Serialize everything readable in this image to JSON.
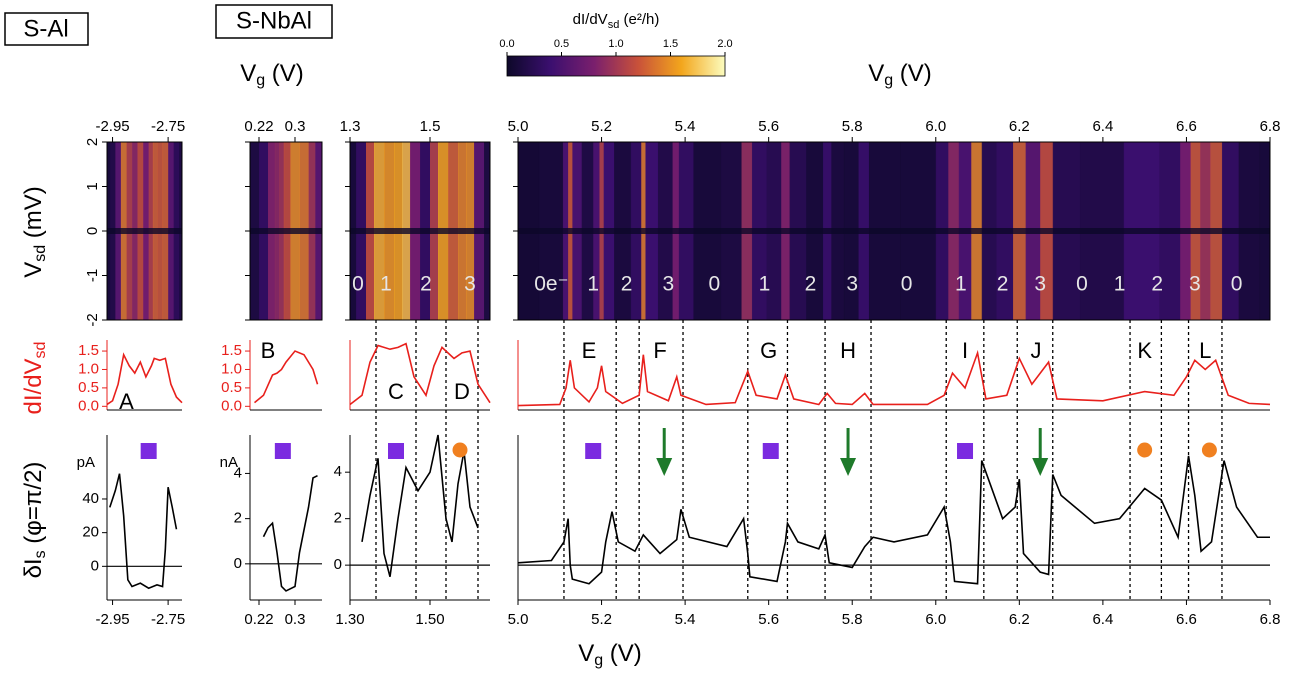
{
  "titles": {
    "s_al": "S-Al",
    "s_nbal": "S-NbAl"
  },
  "axis_labels": {
    "vg": {
      "v": "V",
      "sub": "g",
      "unit": " (V)"
    },
    "vsd": {
      "v": "V",
      "sub": "sd",
      "unit": " (mV)"
    },
    "didv": {
      "v": "dI/dV",
      "sub": "sd"
    },
    "dis": {
      "v": "δI",
      "sub": "s",
      "unit": " (φ=π/2)"
    }
  },
  "colorbar": {
    "label": {
      "v": "dI/dV",
      "sub": "sd",
      "unit": " (e²/h)"
    },
    "lim": [
      0,
      2
    ],
    "ticks": [
      {
        "value": 0,
        "label": "0.0"
      },
      {
        "value": 0.5,
        "label": "0.5"
      },
      {
        "value": 1,
        "label": "1.0"
      },
      {
        "value": 1.5,
        "label": "1.5"
      },
      {
        "value": 2,
        "label": "2.0"
      }
    ],
    "colors": [
      "#0d0829",
      "#3b0f6f",
      "#7a1f6d",
      "#c8513a",
      "#f3a61c",
      "#fcfdbf"
    ]
  },
  "vsd": {
    "ylim": [
      -2,
      2
    ],
    "yticks": [
      2,
      1,
      0,
      -1,
      -2
    ]
  },
  "colors": {
    "didv": "#e8201c",
    "dis": "#000000",
    "square": "#7b2be0",
    "circle": "#f08020",
    "arrow": "#1e7a2a",
    "state": "#e6e6e6"
  },
  "panels": [
    {
      "xlim": [
        -2.97,
        -2.7
      ],
      "top_xticks": [
        -2.95,
        -2.75
      ],
      "bottom_xticks": [
        -2.95,
        -2.75
      ],
      "states": [],
      "dashed": [],
      "regions": [
        {
          "label": "A",
          "vg": -2.9
        }
      ],
      "didv": {
        "ylim": [
          -0.1,
          1.8
        ],
        "yticks": [
          {
            "value": 0,
            "label": "0.0"
          },
          {
            "value": 0.5,
            "label": "0.5"
          },
          {
            "value": 1,
            "label": "1.0"
          },
          {
            "value": 1.5,
            "label": "1.5"
          }
        ],
        "x": [
          -2.97,
          -2.95,
          -2.93,
          -2.91,
          -2.89,
          -2.87,
          -2.85,
          -2.83,
          -2.81,
          -2.8,
          -2.78,
          -2.76,
          -2.74,
          -2.72,
          -2.7
        ],
        "y": [
          0.05,
          0.15,
          0.6,
          1.4,
          1.1,
          0.9,
          1.2,
          0.8,
          1.1,
          1.3,
          1.25,
          1.3,
          0.6,
          0.25,
          0.1
        ]
      },
      "dis": {
        "ylim": [
          -20,
          78
        ],
        "unit": "pA",
        "yticks": [
          0,
          20,
          40
        ],
        "x": [
          -2.96,
          -2.94,
          -2.925,
          -2.91,
          -2.895,
          -2.88,
          -2.85,
          -2.82,
          -2.79,
          -2.77,
          -2.76,
          -2.75,
          -2.735,
          -2.72
        ],
        "y": [
          35,
          45,
          55,
          30,
          -8,
          -12,
          -10,
          -13,
          -11,
          -12,
          10,
          47,
          35,
          22
        ]
      },
      "markers": [
        {
          "shape": "square",
          "vg": -2.82
        }
      ]
    },
    {
      "xlim": [
        0.2,
        0.36
      ],
      "top_xticks": [
        0.22,
        0.3
      ],
      "bottom_xticks": [
        0.22,
        0.3
      ],
      "states": [],
      "dashed": [],
      "regions": [
        {
          "label": "B",
          "vg": 0.24
        }
      ],
      "didv": {
        "ylim": [
          -0.1,
          1.8
        ],
        "yticks": [
          {
            "value": 0,
            "label": "0.0"
          },
          {
            "value": 0.5,
            "label": "0.5"
          },
          {
            "value": 1,
            "label": "1.0"
          },
          {
            "value": 1.5,
            "label": "1.5"
          }
        ],
        "x": [
          0.21,
          0.23,
          0.25,
          0.26,
          0.27,
          0.28,
          0.3,
          0.32,
          0.34,
          0.35
        ],
        "y": [
          0.1,
          0.3,
          0.85,
          0.9,
          1.0,
          1.2,
          1.5,
          1.4,
          1.0,
          0.6
        ]
      },
      "dis": {
        "ylim": [
          -1.6,
          5.7
        ],
        "unit": "nA",
        "yticks": [
          0,
          2,
          4
        ],
        "x": [
          0.23,
          0.24,
          0.25,
          0.26,
          0.27,
          0.28,
          0.3,
          0.31,
          0.32,
          0.33,
          0.34,
          0.35
        ],
        "y": [
          1.2,
          1.6,
          1.8,
          0.5,
          -1.0,
          -1.2,
          -1.0,
          0.5,
          1.5,
          2.5,
          3.8,
          3.9
        ]
      },
      "markers": [
        {
          "shape": "square",
          "vg": 0.273
        }
      ]
    },
    {
      "xlim": [
        1.3,
        1.65
      ],
      "top_xticks": [
        1.3,
        1.5
      ],
      "bottom_xticks": [
        {
          "value": 1.3,
          "label": "1.30"
        },
        {
          "value": 1.5,
          "label": "1.50"
        }
      ],
      "states": [
        {
          "label": "0",
          "vg": 1.32
        },
        {
          "label": "1",
          "vg": 1.39
        },
        {
          "label": "2",
          "vg": 1.49
        },
        {
          "label": "3",
          "vg": 1.6
        }
      ],
      "dashed": [
        1.365,
        1.465,
        1.54,
        1.62
      ],
      "regions": [
        {
          "label": "C",
          "vg": 1.415
        },
        {
          "label": "D",
          "vg": 1.58
        }
      ],
      "didv": {
        "ylim": [
          -0.1,
          1.8
        ],
        "yticks": [],
        "x": [
          1.3,
          1.33,
          1.35,
          1.37,
          1.4,
          1.42,
          1.44,
          1.46,
          1.49,
          1.51,
          1.53,
          1.56,
          1.58,
          1.6,
          1.62,
          1.65
        ],
        "y": [
          0.05,
          0.3,
          1.2,
          1.65,
          1.55,
          1.6,
          1.7,
          0.8,
          0.3,
          1.1,
          1.6,
          1.3,
          1.45,
          1.5,
          0.6,
          0.1
        ]
      },
      "dis": {
        "ylim": [
          -1.5,
          5.6
        ],
        "yticks": [
          0,
          2,
          4
        ],
        "x": [
          1.33,
          1.35,
          1.37,
          1.385,
          1.4,
          1.42,
          1.44,
          1.47,
          1.5,
          1.52,
          1.54,
          1.555,
          1.57,
          1.585,
          1.6,
          1.62
        ],
        "y": [
          1.0,
          3.0,
          4.6,
          0.5,
          -0.5,
          2.0,
          4.2,
          3.2,
          4.0,
          5.6,
          2.0,
          1.0,
          3.5,
          4.9,
          2.5,
          1.6
        ]
      },
      "markers": [
        {
          "shape": "square",
          "vg": 1.415
        },
        {
          "shape": "circle",
          "vg": 1.575
        }
      ]
    },
    {
      "xlim": [
        5.0,
        6.8
      ],
      "top_xticks": [
        {
          "value": 5,
          "label": "5.0"
        },
        {
          "value": 5.2,
          "label": "5.2"
        },
        {
          "value": 5.4,
          "label": "5.4"
        },
        {
          "value": 5.6,
          "label": "5.6"
        },
        {
          "value": 5.8,
          "label": "5.8"
        },
        {
          "value": 6,
          "label": "6.0"
        },
        {
          "value": 6.2,
          "label": "6.2"
        },
        {
          "value": 6.4,
          "label": "6.4"
        },
        {
          "value": 6.6,
          "label": "6.6"
        },
        {
          "value": 6.8,
          "label": "6.8"
        }
      ],
      "bottom_xticks": [
        {
          "value": 5,
          "label": "5.0"
        },
        {
          "value": 5.2,
          "label": "5.2"
        },
        {
          "value": 5.4,
          "label": "5.4"
        },
        {
          "value": 5.6,
          "label": "5.6"
        },
        {
          "value": 5.8,
          "label": "5.8"
        },
        {
          "value": 6,
          "label": "6.0"
        },
        {
          "value": 6.2,
          "label": "6.2"
        },
        {
          "value": 6.4,
          "label": "6.4"
        },
        {
          "value": 6.6,
          "label": "6.6"
        },
        {
          "value": 6.8,
          "label": "6.8"
        }
      ],
      "states": [
        {
          "label": "0e⁻",
          "vg": 5.08
        },
        {
          "label": "1",
          "vg": 5.18
        },
        {
          "label": "2",
          "vg": 5.26
        },
        {
          "label": "3",
          "vg": 5.36
        },
        {
          "label": "0",
          "vg": 5.47
        },
        {
          "label": "1",
          "vg": 5.59
        },
        {
          "label": "2",
          "vg": 5.7
        },
        {
          "label": "3",
          "vg": 5.8
        },
        {
          "label": "0",
          "vg": 5.93
        },
        {
          "label": "1",
          "vg": 6.06
        },
        {
          "label": "2",
          "vg": 6.16
        },
        {
          "label": "3",
          "vg": 6.25
        },
        {
          "label": "0",
          "vg": 6.35
        },
        {
          "label": "1",
          "vg": 6.44
        },
        {
          "label": "2",
          "vg": 6.53
        },
        {
          "label": "3",
          "vg": 6.62
        },
        {
          "label": "0",
          "vg": 6.72
        }
      ],
      "dashed": [
        5.11,
        5.235,
        5.29,
        5.395,
        5.55,
        5.645,
        5.735,
        5.845,
        6.025,
        6.115,
        6.195,
        6.28,
        6.465,
        6.54,
        6.605,
        6.685
      ],
      "regions": [
        {
          "label": "E",
          "vg": 5.17
        },
        {
          "label": "F",
          "vg": 5.34
        },
        {
          "label": "G",
          "vg": 5.6
        },
        {
          "label": "H",
          "vg": 5.79
        },
        {
          "label": "I",
          "vg": 6.07
        },
        {
          "label": "J",
          "vg": 6.24
        },
        {
          "label": "K",
          "vg": 6.5
        },
        {
          "label": "L",
          "vg": 6.645
        }
      ],
      "didv": {
        "ylim": [
          -0.1,
          1.8
        ],
        "yticks": [],
        "x": [
          5.0,
          5.1,
          5.115,
          5.125,
          5.135,
          5.17,
          5.19,
          5.2,
          5.21,
          5.25,
          5.29,
          5.3,
          5.31,
          5.36,
          5.38,
          5.39,
          5.45,
          5.52,
          5.55,
          5.57,
          5.62,
          5.64,
          5.66,
          5.72,
          5.74,
          5.76,
          5.8,
          5.83,
          5.85,
          5.98,
          6.02,
          6.04,
          6.07,
          6.1,
          6.12,
          6.17,
          6.2,
          6.23,
          6.27,
          6.29,
          6.4,
          6.5,
          6.57,
          6.6,
          6.62,
          6.645,
          6.67,
          6.7,
          6.75,
          6.8
        ],
        "y": [
          0.02,
          0.05,
          0.5,
          1.25,
          0.5,
          0.12,
          0.5,
          1.1,
          0.4,
          0.08,
          0.3,
          1.4,
          0.4,
          0.15,
          0.8,
          0.3,
          0.05,
          0.1,
          0.95,
          0.3,
          0.2,
          0.85,
          0.2,
          0.05,
          0.35,
          0.08,
          0.05,
          0.35,
          0.05,
          0.05,
          0.3,
          0.9,
          0.5,
          1.45,
          0.2,
          0.3,
          1.3,
          0.6,
          1.2,
          0.2,
          0.15,
          0.4,
          0.3,
          0.8,
          1.25,
          1.0,
          1.25,
          0.3,
          0.08,
          0.05
        ]
      },
      "dis": {
        "ylim": [
          -1.5,
          5.6
        ],
        "yticks": [],
        "x": [
          5.0,
          5.08,
          5.11,
          5.12,
          5.125,
          5.13,
          5.17,
          5.2,
          5.21,
          5.225,
          5.24,
          5.28,
          5.3,
          5.34,
          5.38,
          5.39,
          5.41,
          5.5,
          5.54,
          5.55,
          5.555,
          5.62,
          5.64,
          5.645,
          5.67,
          5.72,
          5.735,
          5.745,
          5.8,
          5.83,
          5.85,
          5.9,
          5.98,
          6.02,
          6.035,
          6.045,
          6.1,
          6.11,
          6.13,
          6.16,
          6.19,
          6.2,
          6.21,
          6.25,
          6.27,
          6.28,
          6.3,
          6.38,
          6.44,
          6.5,
          6.54,
          6.58,
          6.605,
          6.62,
          6.635,
          6.66,
          6.69,
          6.72,
          6.77,
          6.8
        ],
        "y": [
          0.1,
          0.2,
          1.0,
          2.0,
          0.0,
          -0.6,
          -0.8,
          -0.3,
          1.0,
          2.3,
          1.0,
          0.6,
          1.3,
          0.5,
          1.1,
          2.4,
          1.2,
          0.8,
          2.0,
          0.5,
          -0.5,
          -0.7,
          1.0,
          1.8,
          1.0,
          0.7,
          1.3,
          0.1,
          -0.1,
          0.8,
          1.2,
          1.0,
          1.3,
          2.5,
          1.0,
          -0.7,
          -0.8,
          4.5,
          3.5,
          2.0,
          2.5,
          3.7,
          0.5,
          -0.3,
          -0.4,
          3.9,
          3.0,
          1.8,
          2.0,
          3.3,
          2.8,
          1.2,
          4.7,
          3.0,
          0.6,
          1.0,
          4.5,
          2.5,
          1.2,
          1.2
        ]
      },
      "markers": [
        {
          "shape": "square",
          "vg": 5.18
        },
        {
          "shape": "square",
          "vg": 5.605
        },
        {
          "shape": "square",
          "vg": 6.07
        },
        {
          "shape": "arrow",
          "vg": 5.35
        },
        {
          "shape": "arrow",
          "vg": 5.79
        },
        {
          "shape": "arrow",
          "vg": 6.25
        },
        {
          "shape": "circle",
          "vg": 6.5
        },
        {
          "shape": "circle",
          "vg": 6.655
        }
      ]
    }
  ]
}
